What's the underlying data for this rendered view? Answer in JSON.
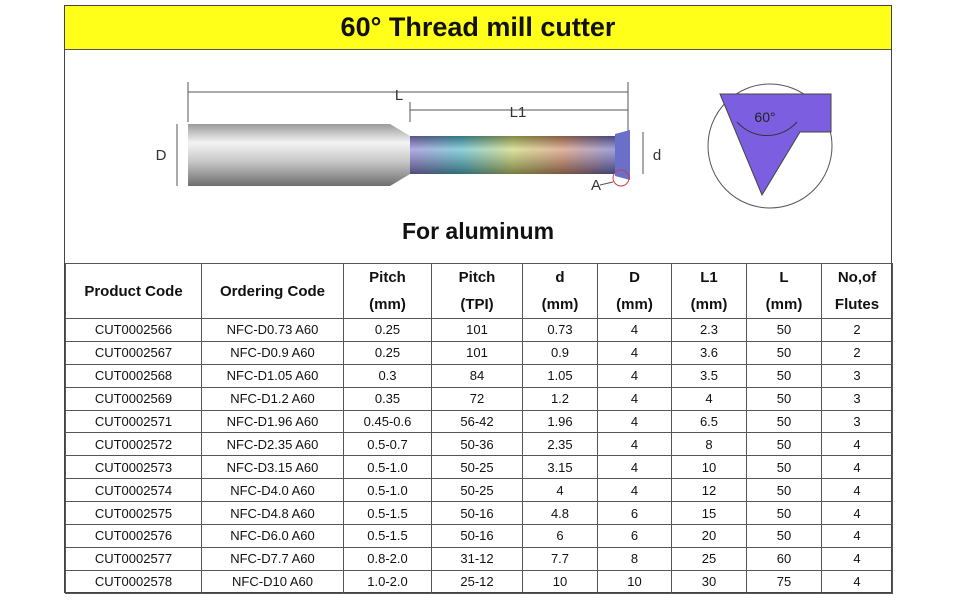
{
  "header": {
    "title": "60° Thread mill cutter"
  },
  "diagram": {
    "length_label": "L",
    "flute_length_label": "L1",
    "shank_diameter_label": "D",
    "cutting_diameter_label": "d",
    "detail_label": "A",
    "angle_label": "60°"
  },
  "subtitle": "For aluminum",
  "table": {
    "headers": [
      [
        "Product Code"
      ],
      [
        "Ordering Code"
      ],
      [
        "Pitch",
        "(mm)"
      ],
      [
        "Pitch",
        "(TPI)"
      ],
      [
        "d",
        "(mm)"
      ],
      [
        "D",
        "(mm)"
      ],
      [
        "L1",
        "(mm)"
      ],
      [
        "L",
        "(mm)"
      ],
      [
        "No,of",
        "Flutes"
      ]
    ],
    "rows": [
      [
        "CUT0002566",
        "NFC-D0.73 A60",
        "0.25",
        "101",
        "0.73",
        "4",
        "2.3",
        "50",
        "2"
      ],
      [
        "CUT0002567",
        "NFC-D0.9 A60",
        "0.25",
        "101",
        "0.9",
        "4",
        "3.6",
        "50",
        "2"
      ],
      [
        "CUT0002568",
        "NFC-D1.05 A60",
        "0.3",
        "84",
        "1.05",
        "4",
        "3.5",
        "50",
        "3"
      ],
      [
        "CUT0002569",
        "NFC-D1.2 A60",
        "0.35",
        "72",
        "1.2",
        "4",
        "4",
        "50",
        "3"
      ],
      [
        "CUT0002571",
        "NFC-D1.96 A60",
        "0.45-0.6",
        "56-42",
        "1.96",
        "4",
        "6.5",
        "50",
        "3"
      ],
      [
        "CUT0002572",
        "NFC-D2.35 A60",
        "0.5-0.7",
        "50-36",
        "2.35",
        "4",
        "8",
        "50",
        "4"
      ],
      [
        "CUT0002573",
        "NFC-D3.15 A60",
        "0.5-1.0",
        "50-25",
        "3.15",
        "4",
        "10",
        "50",
        "4"
      ],
      [
        "CUT0002574",
        "NFC-D4.0 A60",
        "0.5-1.0",
        "50-25",
        "4",
        "4",
        "12",
        "50",
        "4"
      ],
      [
        "CUT0002575",
        "NFC-D4.8 A60",
        "0.5-1.5",
        "50-16",
        "4.8",
        "6",
        "15",
        "50",
        "4"
      ],
      [
        "CUT0002576",
        "NFC-D6.0 A60",
        "0.5-1.5",
        "50-16",
        "6",
        "6",
        "20",
        "50",
        "4"
      ],
      [
        "CUT0002577",
        "NFC-D7.7 A60",
        "0.8-2.0",
        "31-12",
        "7.7",
        "8",
        "25",
        "60",
        "4"
      ],
      [
        "CUT0002578",
        "NFC-D10 A60",
        "1.0-2.0",
        "25-12",
        "10",
        "10",
        "30",
        "75",
        "4"
      ]
    ]
  }
}
